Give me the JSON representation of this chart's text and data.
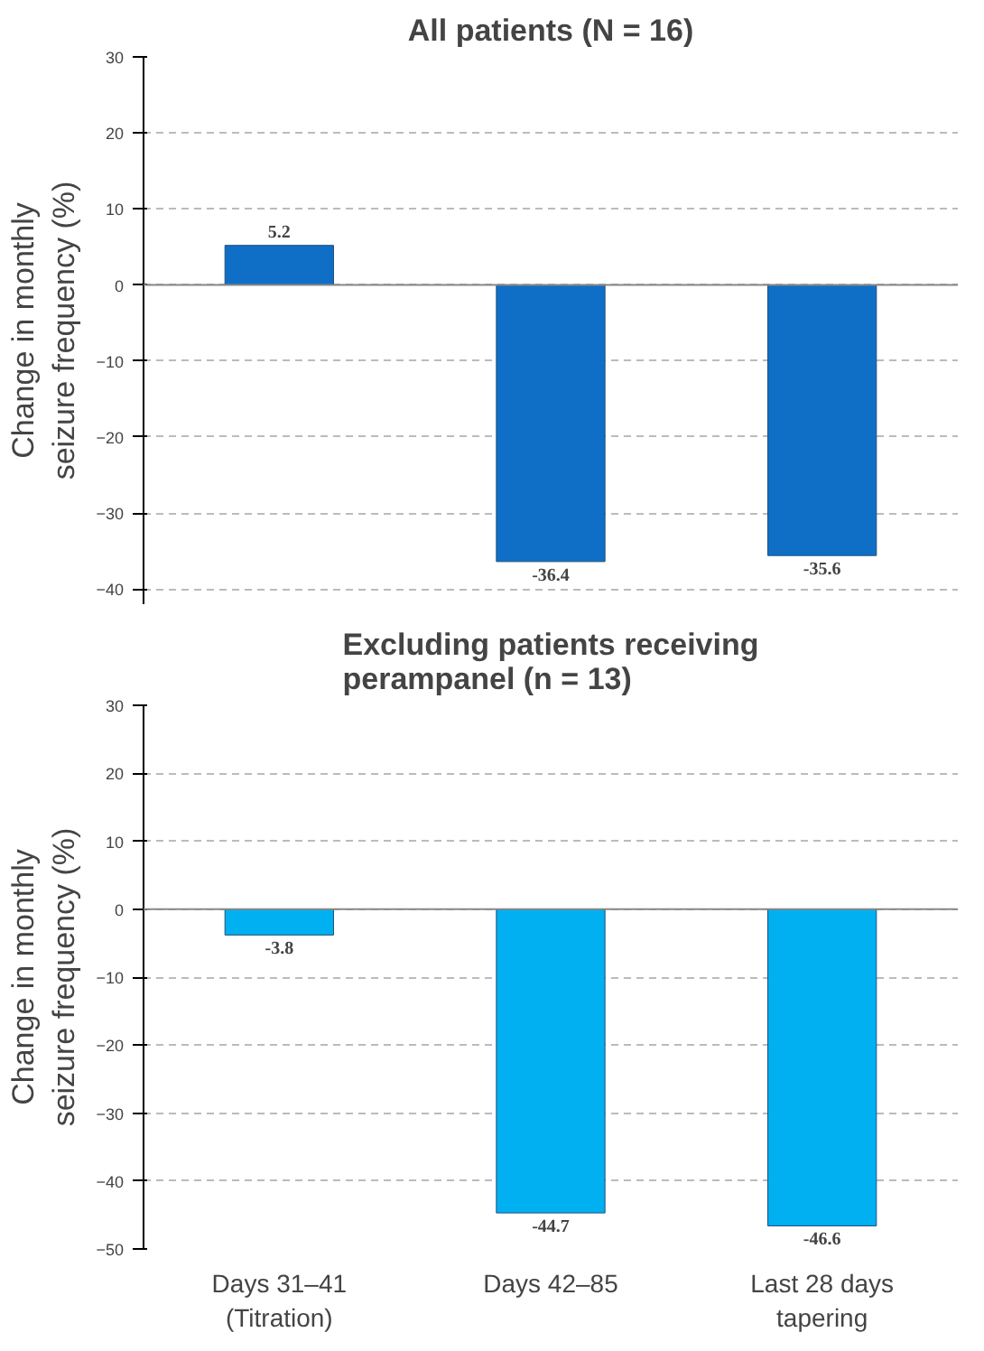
{
  "chart_data": [
    {
      "type": "bar",
      "title": "All patients (N = 16)",
      "ylabel": "Change in monthly\nseizure frequency (%)",
      "categories": [
        null,
        null,
        null
      ],
      "values": [
        5.2,
        -36.4,
        -35.6
      ],
      "color": "#0f6fc6",
      "ylim": [
        -42,
        30
      ],
      "yticks": [
        -40,
        -30,
        -20,
        -10,
        0,
        10,
        20,
        30
      ],
      "grid": "y",
      "data_labels": true
    },
    {
      "type": "bar",
      "title": "Excluding patients receiving\nperampanel (n = 13)",
      "ylabel": "Change in monthly\nseizure frequency (%)",
      "categories": [
        "Days 31–41\n(Titration)",
        "Days 42–85",
        "Last 28 days\ntapering"
      ],
      "values": [
        -3.8,
        -44.7,
        -46.6
      ],
      "color": "#00b0f0",
      "ylim": [
        -50,
        30
      ],
      "yticks": [
        -50,
        -40,
        -30,
        -20,
        -10,
        0,
        10,
        20,
        30
      ],
      "grid": "y",
      "data_labels": true
    }
  ]
}
